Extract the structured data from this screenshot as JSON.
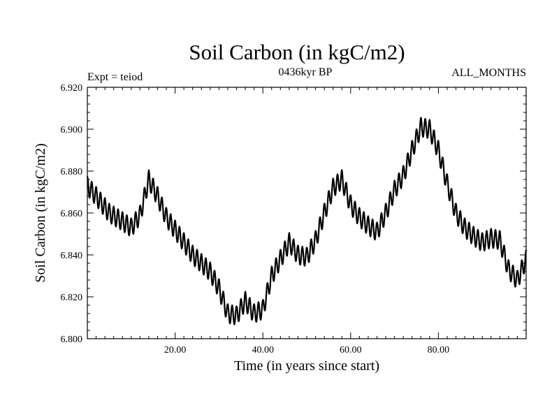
{
  "chart_data": {
    "type": "line",
    "title": "Soil Carbon (in kgC/m2)",
    "subtitle_left": "Expt = teiod",
    "subtitle_center": "0436kyr BP",
    "subtitle_right": "ALL_MONTHS",
    "xlabel": "Time (in years since start)",
    "ylabel": "Soil Carbon (in kgC/m2)",
    "xlim": [
      0,
      100
    ],
    "ylim": [
      6.8,
      6.92
    ],
    "x_ticks": [
      20,
      40,
      60,
      80
    ],
    "x_tick_labels": [
      "20.00",
      "40.00",
      "60.00",
      "80.00"
    ],
    "y_ticks": [
      6.8,
      6.82,
      6.84,
      6.86,
      6.88,
      6.9,
      6.92
    ],
    "y_tick_labels": [
      "6.800",
      "6.820",
      "6.840",
      "6.860",
      "6.880",
      "6.900",
      "6.920"
    ],
    "seasonal_amplitude": 0.0045,
    "series_trend": {
      "name": "Soil Carbon",
      "x": [
        0,
        2,
        5,
        8,
        10,
        12,
        14,
        16,
        18,
        20,
        22,
        24,
        26,
        28,
        30,
        32,
        34,
        36,
        38,
        40,
        42,
        44,
        46,
        48,
        50,
        52,
        54,
        56,
        58,
        60,
        62,
        64,
        66,
        68,
        70,
        72,
        74,
        76,
        78,
        80,
        82,
        84,
        86,
        88,
        90,
        92,
        94,
        96,
        98,
        100
      ],
      "values": [
        6.873,
        6.868,
        6.86,
        6.856,
        6.853,
        6.859,
        6.876,
        6.868,
        6.858,
        6.852,
        6.846,
        6.84,
        6.836,
        6.832,
        6.824,
        6.812,
        6.811,
        6.818,
        6.812,
        6.814,
        6.83,
        6.838,
        6.846,
        6.84,
        6.839,
        6.847,
        6.86,
        6.872,
        6.876,
        6.864,
        6.858,
        6.854,
        6.851,
        6.86,
        6.871,
        6.878,
        6.89,
        6.901,
        6.9,
        6.89,
        6.874,
        6.86,
        6.853,
        6.849,
        6.846,
        6.848,
        6.847,
        6.833,
        6.828,
        6.838
      ]
    }
  }
}
